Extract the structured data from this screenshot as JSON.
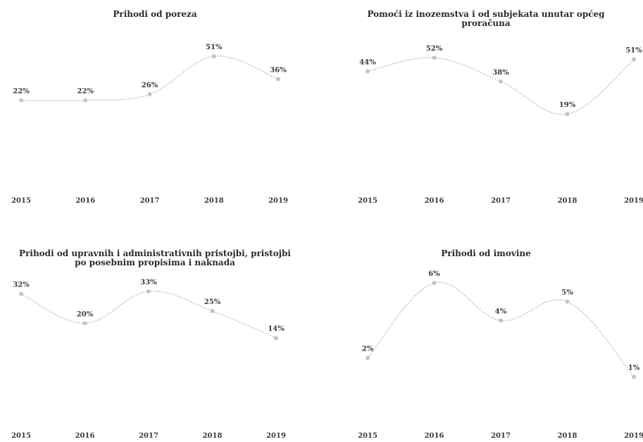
{
  "chart_data": [
    {
      "type": "line",
      "title": "Prihodi od poreza",
      "x": [
        "2015",
        "2016",
        "2017",
        "2018",
        "2019"
      ],
      "values": [
        22,
        22,
        26,
        51,
        36
      ],
      "labels": [
        "22%",
        "22%",
        "26%",
        "51%",
        "36%"
      ],
      "ylim": [
        0,
        60
      ],
      "grid": false,
      "legend": "none",
      "color": "#b5b5b5"
    },
    {
      "type": "line",
      "title": "Pomoći iz inozemstva i od subjekata unutar općeg proračuna",
      "x": [
        "2015",
        "2016",
        "2017",
        "2018",
        "2019"
      ],
      "values": [
        44,
        52,
        38,
        19,
        51
      ],
      "labels": [
        "44%",
        "52%",
        "38%",
        "19%",
        "51%"
      ],
      "ylim": [
        0,
        60
      ],
      "grid": false,
      "legend": "none",
      "color": "#b5b5b5"
    },
    {
      "type": "line",
      "title": "Prihodi od upravnih i administrativnih pristojbi, pristojbi po posebnim propisima i naknada",
      "x": [
        "2015",
        "2016",
        "2017",
        "2018",
        "2019"
      ],
      "values": [
        32,
        20,
        33,
        25,
        14
      ],
      "labels": [
        "32%",
        "20%",
        "33%",
        "25%",
        "14%"
      ],
      "ylim": [
        0,
        40
      ],
      "grid": false,
      "legend": "none",
      "color": "#b5b5b5"
    },
    {
      "type": "line",
      "title": "Prihodi od imovine",
      "x": [
        "2015",
        "2016",
        "2017",
        "2018",
        "2019"
      ],
      "values": [
        2,
        6,
        4,
        5,
        1
      ],
      "labels": [
        "2%",
        "6%",
        "4%",
        "5%",
        "1%"
      ],
      "ylim": [
        0,
        7
      ],
      "grid": false,
      "legend": "none",
      "color": "#b5b5b5"
    }
  ]
}
